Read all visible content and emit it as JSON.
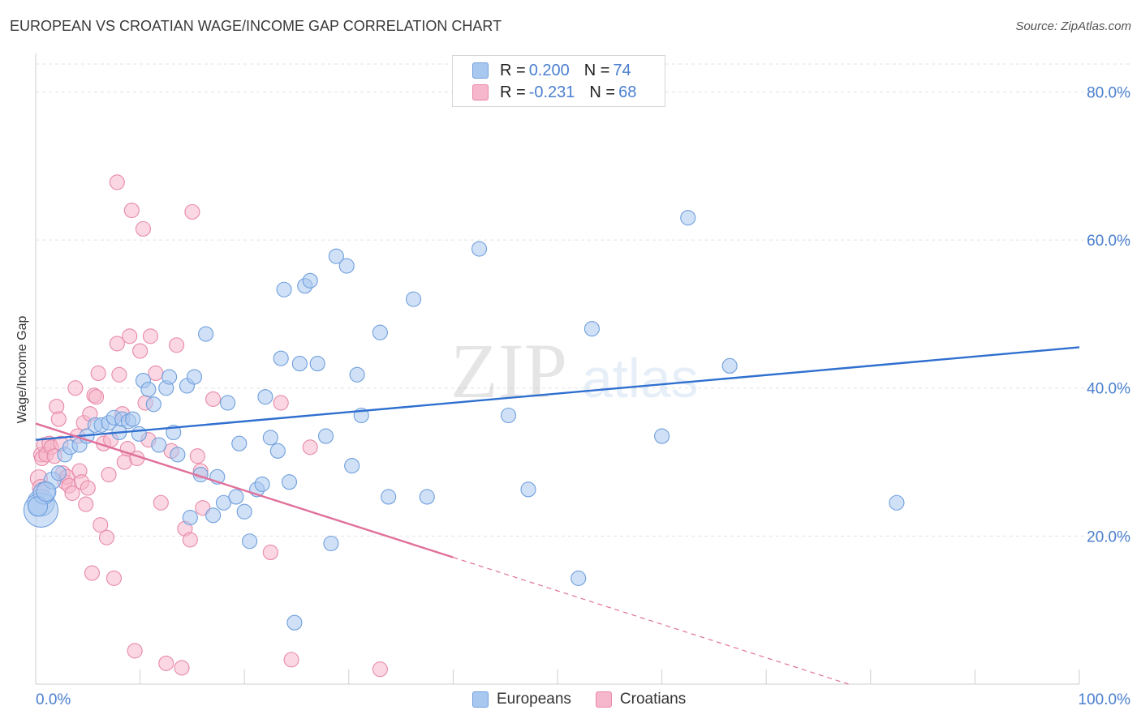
{
  "title": "EUROPEAN VS CROATIAN WAGE/INCOME GAP CORRELATION CHART",
  "source": "Source: ZipAtlas.com",
  "watermark": {
    "main": "ZIP",
    "sub": "atlas"
  },
  "stats": [
    {
      "r_label": "R =",
      "r_value": "0.200",
      "n_label": "N =",
      "n_value": "74"
    },
    {
      "r_label": "R =",
      "r_value": "-0.231",
      "n_label": "N =",
      "n_value": "68"
    }
  ],
  "colors": {
    "europeans_fill": "#a9c8f0",
    "europeans_stroke": "#6f9fdc",
    "europeans_line": "#2f6fcf",
    "croatians_fill": "#f6b6cb",
    "croatians_stroke": "#e889a8",
    "croatians_line": "#e0709a",
    "grid": "#e3e3e3",
    "axis_tick": "#4a7fcf"
  },
  "chart_data": {
    "type": "scatter",
    "title": "EUROPEAN VS CROATIAN WAGE/INCOME GAP CORRELATION CHART",
    "xlabel": "",
    "ylabel": "Wage/Income Gap",
    "xlim": [
      0,
      100
    ],
    "ylim": [
      0,
      80
    ],
    "x_tick_labels": [
      "0.0%",
      "100.0%"
    ],
    "y_ticks": [
      20,
      40,
      60,
      80
    ],
    "y_tick_labels": [
      "20.0%",
      "40.0%",
      "60.0%",
      "80.0%"
    ],
    "grid": true,
    "legend_position": "bottom-center",
    "series": [
      {
        "name": "Europeans",
        "trend": {
          "x": [
            0,
            100
          ],
          "y": [
            33.0,
            45.5
          ],
          "dashed_from": null
        },
        "points": [
          [
            0.5,
            24.5
          ],
          [
            0.5,
            23.5
          ],
          [
            0.8,
            25.8
          ],
          [
            1.6,
            27.5
          ],
          [
            2.2,
            28.5
          ],
          [
            2.8,
            31.0
          ],
          [
            3.3,
            32.0
          ],
          [
            4.2,
            32.3
          ],
          [
            4.9,
            33.5
          ],
          [
            5.7,
            35.0
          ],
          [
            6.3,
            35.0
          ],
          [
            7.0,
            35.3
          ],
          [
            7.5,
            36.0
          ],
          [
            8.0,
            34.0
          ],
          [
            8.3,
            35.8
          ],
          [
            8.9,
            35.5
          ],
          [
            9.3,
            35.8
          ],
          [
            9.9,
            33.8
          ],
          [
            10.3,
            41.0
          ],
          [
            10.8,
            39.8
          ],
          [
            11.3,
            37.8
          ],
          [
            11.8,
            32.3
          ],
          [
            12.5,
            40.0
          ],
          [
            12.8,
            41.5
          ],
          [
            13.2,
            34.0
          ],
          [
            13.6,
            31.0
          ],
          [
            14.5,
            40.3
          ],
          [
            14.8,
            22.5
          ],
          [
            15.2,
            41.5
          ],
          [
            15.8,
            28.3
          ],
          [
            16.3,
            47.3
          ],
          [
            17.0,
            22.8
          ],
          [
            17.4,
            28.0
          ],
          [
            18.0,
            24.5
          ],
          [
            18.4,
            38.0
          ],
          [
            19.2,
            25.3
          ],
          [
            19.5,
            32.5
          ],
          [
            20.0,
            23.3
          ],
          [
            20.5,
            19.3
          ],
          [
            21.2,
            26.3
          ],
          [
            21.7,
            27.0
          ],
          [
            22.0,
            38.8
          ],
          [
            22.5,
            33.3
          ],
          [
            23.2,
            31.5
          ],
          [
            23.5,
            44.0
          ],
          [
            23.8,
            53.3
          ],
          [
            24.3,
            27.3
          ],
          [
            24.8,
            8.3
          ],
          [
            25.3,
            43.3
          ],
          [
            25.8,
            53.8
          ],
          [
            26.3,
            54.5
          ],
          [
            27.0,
            43.3
          ],
          [
            27.8,
            33.5
          ],
          [
            28.3,
            19.0
          ],
          [
            28.8,
            57.8
          ],
          [
            29.8,
            56.5
          ],
          [
            30.3,
            29.5
          ],
          [
            30.8,
            41.8
          ],
          [
            31.2,
            36.3
          ],
          [
            33.0,
            47.5
          ],
          [
            33.8,
            25.3
          ],
          [
            36.2,
            52.0
          ],
          [
            37.5,
            25.3
          ],
          [
            42.5,
            58.8
          ],
          [
            45.3,
            36.3
          ],
          [
            47.2,
            26.3
          ],
          [
            52.0,
            14.3
          ],
          [
            53.3,
            48.0
          ],
          [
            60.0,
            33.5
          ],
          [
            62.5,
            63.0
          ],
          [
            66.5,
            43.0
          ],
          [
            82.5,
            24.5
          ],
          [
            0.2,
            24.0
          ],
          [
            1.0,
            26.0
          ]
        ],
        "sizes": [
          22,
          28,
          18,
          14,
          12,
          12,
          12,
          12,
          12,
          12,
          12,
          12,
          12,
          12,
          12,
          12,
          12,
          12,
          12,
          12,
          12,
          12,
          12,
          12,
          12,
          12,
          12,
          12,
          12,
          12,
          12,
          12,
          12,
          12,
          12,
          12,
          12,
          12,
          12,
          12,
          12,
          12,
          12,
          12,
          12,
          12,
          12,
          12,
          12,
          12,
          12,
          12,
          12,
          12,
          12,
          12,
          12,
          12,
          12,
          12,
          12,
          12,
          12,
          12,
          12,
          12,
          12,
          12,
          12,
          12,
          12,
          12,
          16,
          16
        ]
      },
      {
        "name": "Croatians",
        "trend": {
          "x": [
            0,
            100
          ],
          "y": [
            35.2,
            -10.0
          ],
          "solid_until_x": 40.0
        },
        "points": [
          [
            0.3,
            27.8
          ],
          [
            0.5,
            26.5
          ],
          [
            0.5,
            31.0
          ],
          [
            0.6,
            30.5
          ],
          [
            0.8,
            32.3
          ],
          [
            1.0,
            31.0
          ],
          [
            1.3,
            32.5
          ],
          [
            1.5,
            32.0
          ],
          [
            1.8,
            30.8
          ],
          [
            2.0,
            37.5
          ],
          [
            2.2,
            35.8
          ],
          [
            2.4,
            32.5
          ],
          [
            2.6,
            28.5
          ],
          [
            2.8,
            27.3
          ],
          [
            3.0,
            28.0
          ],
          [
            3.2,
            26.8
          ],
          [
            3.5,
            25.8
          ],
          [
            3.8,
            40.0
          ],
          [
            4.0,
            33.5
          ],
          [
            4.2,
            28.8
          ],
          [
            4.4,
            27.3
          ],
          [
            4.6,
            35.3
          ],
          [
            4.8,
            24.3
          ],
          [
            5.0,
            26.5
          ],
          [
            5.2,
            36.5
          ],
          [
            5.4,
            15.0
          ],
          [
            5.6,
            39.0
          ],
          [
            5.8,
            38.8
          ],
          [
            6.0,
            42.0
          ],
          [
            6.2,
            21.5
          ],
          [
            6.5,
            32.5
          ],
          [
            6.8,
            19.8
          ],
          [
            7.0,
            28.3
          ],
          [
            7.2,
            33.0
          ],
          [
            7.5,
            14.3
          ],
          [
            7.8,
            46.0
          ],
          [
            7.8,
            67.8
          ],
          [
            8.0,
            41.8
          ],
          [
            8.3,
            36.5
          ],
          [
            8.5,
            30.0
          ],
          [
            8.8,
            31.8
          ],
          [
            9.0,
            47.0
          ],
          [
            9.2,
            64.0
          ],
          [
            9.5,
            4.5
          ],
          [
            9.7,
            30.5
          ],
          [
            10.0,
            45.0
          ],
          [
            10.3,
            61.5
          ],
          [
            10.5,
            38.0
          ],
          [
            10.8,
            33.0
          ],
          [
            11.0,
            47.0
          ],
          [
            11.5,
            42.0
          ],
          [
            12.0,
            24.5
          ],
          [
            12.5,
            2.8
          ],
          [
            13.0,
            31.5
          ],
          [
            13.5,
            45.8
          ],
          [
            14.0,
            2.2
          ],
          [
            14.3,
            21.0
          ],
          [
            14.8,
            19.5
          ],
          [
            15.0,
            63.8
          ],
          [
            15.5,
            30.8
          ],
          [
            15.8,
            28.8
          ],
          [
            16.0,
            23.8
          ],
          [
            17.0,
            38.5
          ],
          [
            22.5,
            17.8
          ],
          [
            23.5,
            38.0
          ],
          [
            24.5,
            3.3
          ],
          [
            26.3,
            32.0
          ],
          [
            33.0,
            2.0
          ]
        ],
        "sizes": [
          14,
          14,
          12,
          12,
          12,
          12,
          12,
          12,
          12,
          12,
          12,
          12,
          12,
          12,
          12,
          12,
          12,
          12,
          12,
          12,
          12,
          12,
          12,
          12,
          12,
          12,
          12,
          12,
          12,
          12,
          12,
          12,
          12,
          12,
          12,
          12,
          12,
          12,
          12,
          12,
          12,
          12,
          12,
          12,
          12,
          12,
          12,
          12,
          12,
          12,
          12,
          12,
          12,
          12,
          12,
          12,
          12,
          12,
          12,
          12,
          12,
          12,
          12,
          12,
          12,
          12,
          12,
          12
        ]
      }
    ]
  }
}
